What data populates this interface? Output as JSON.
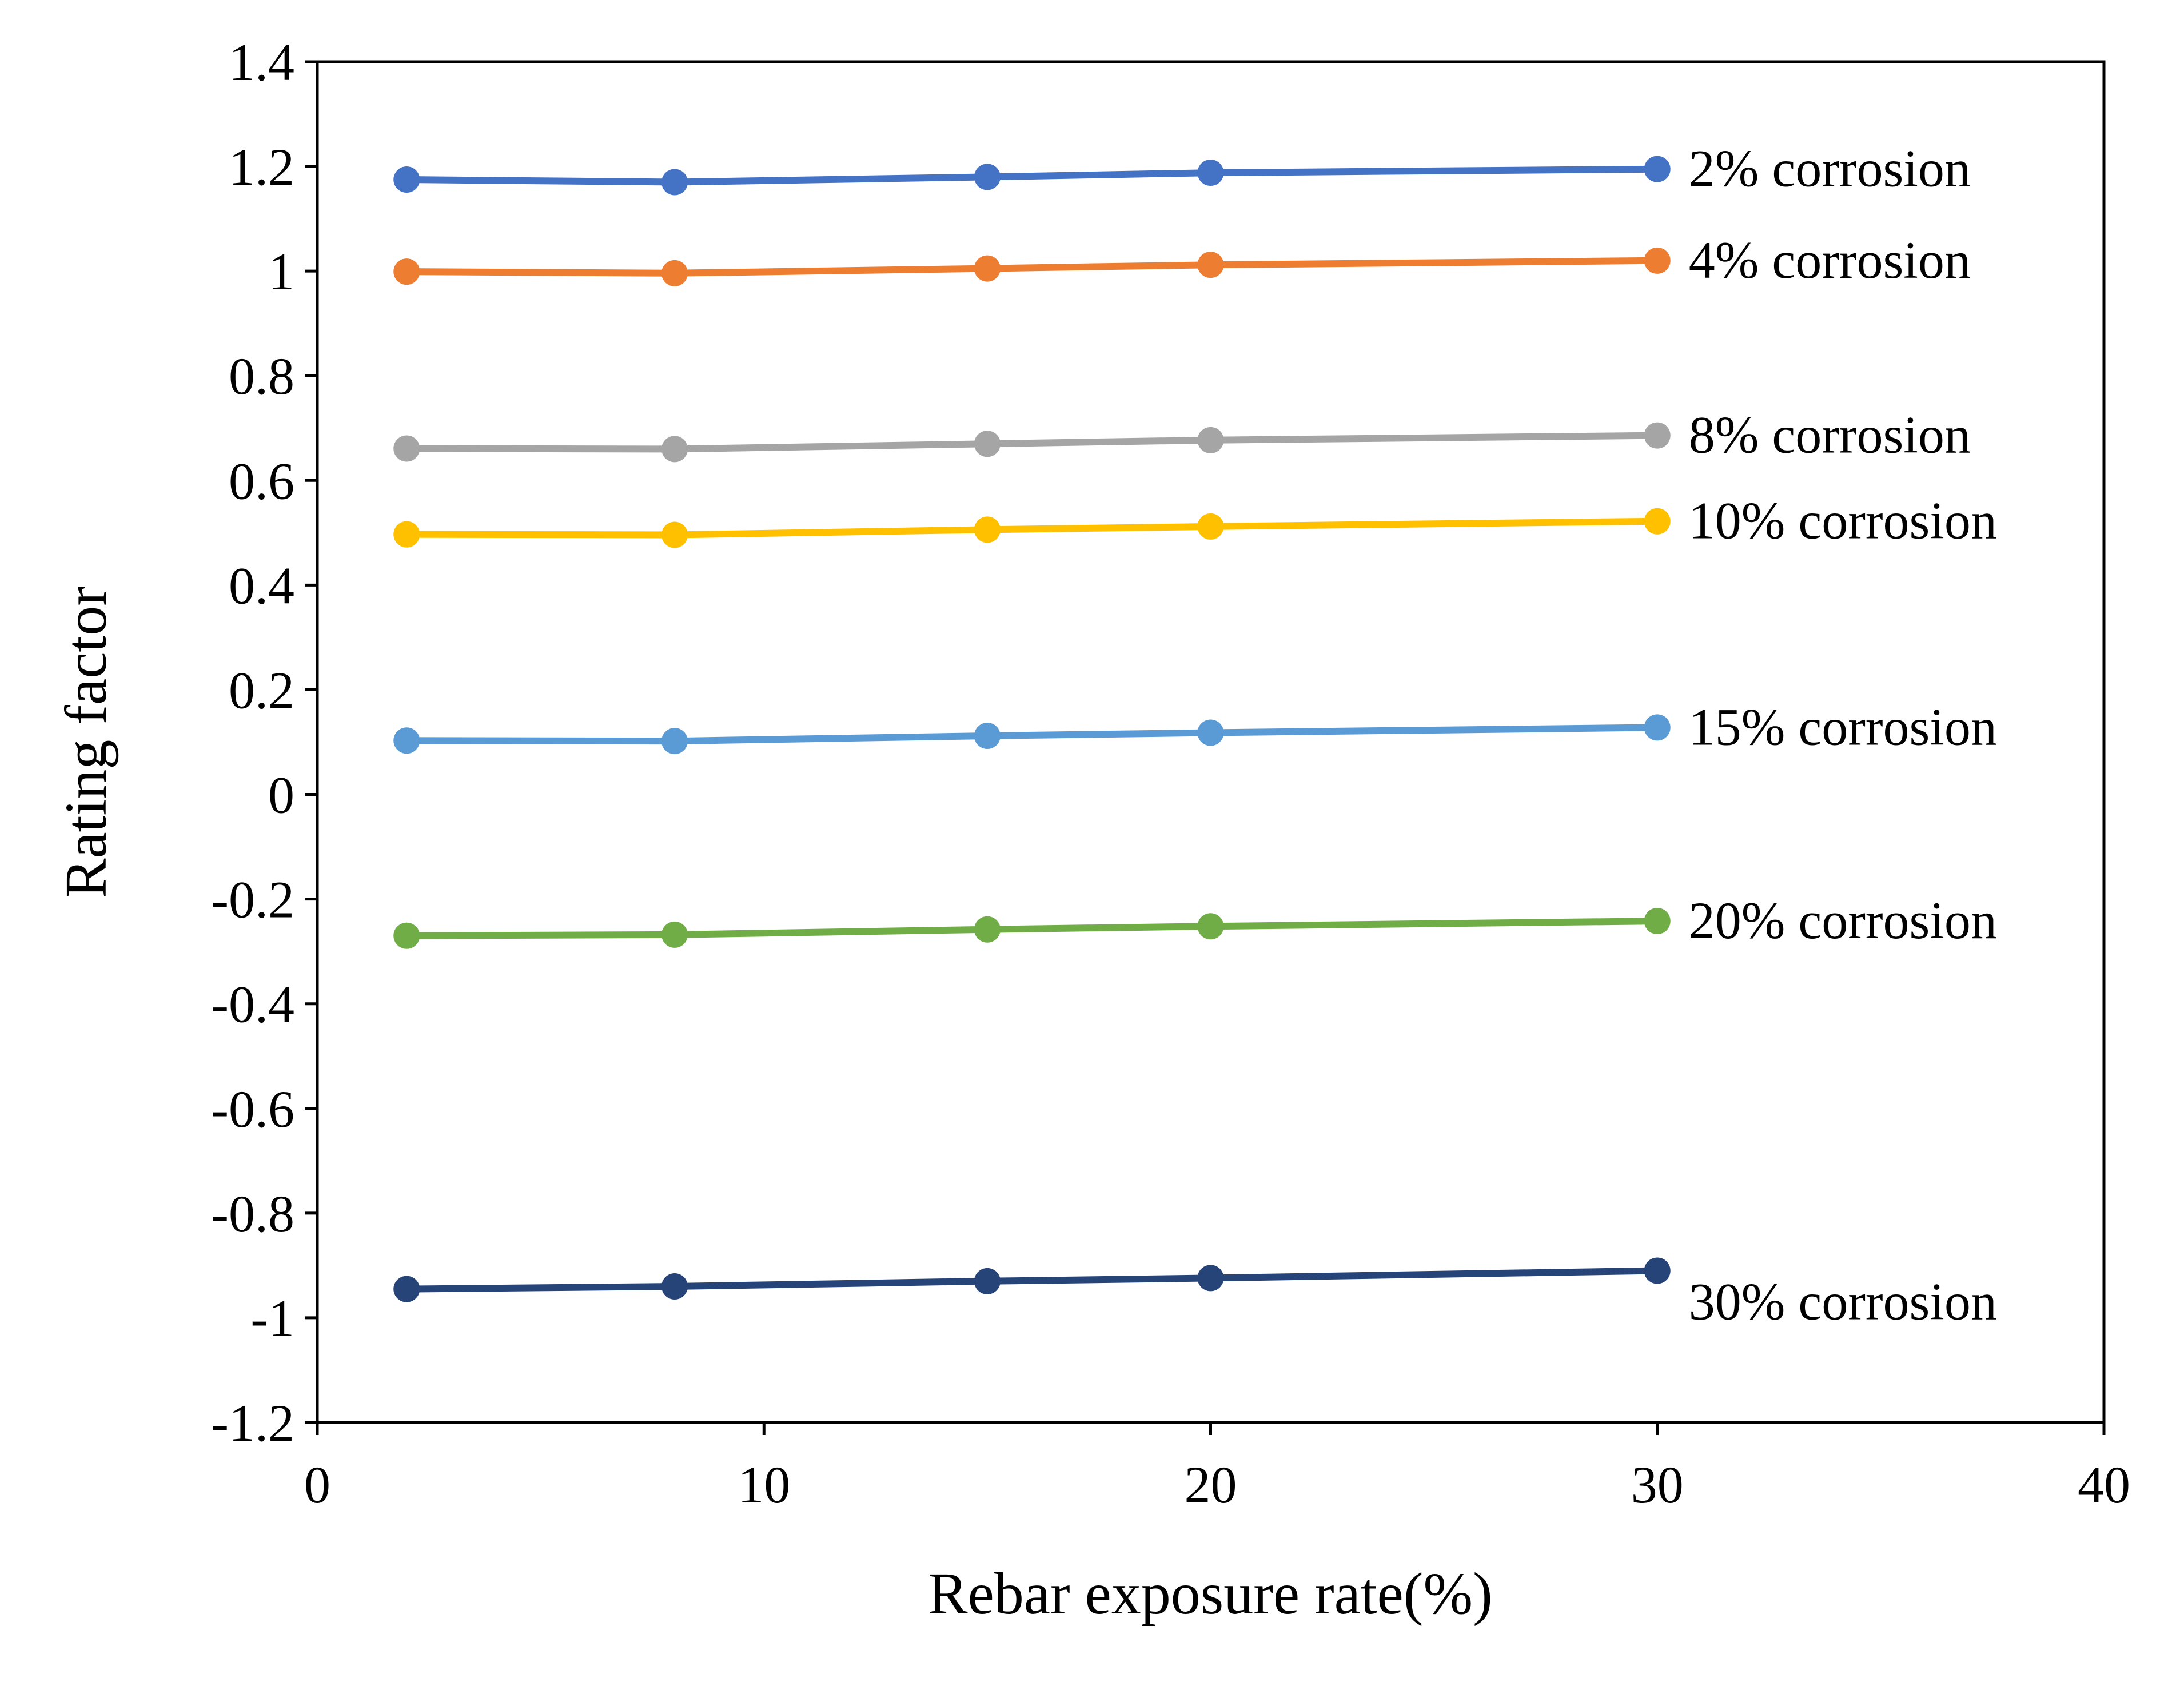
{
  "chart_data": {
    "type": "line",
    "title": "",
    "xlabel": "Rebar exposure rate(%)",
    "ylabel": "Rating factor",
    "xlim": [
      0,
      40
    ],
    "ylim": [
      -1.2,
      1.4
    ],
    "x_ticks": [
      0,
      10,
      20,
      30,
      40
    ],
    "x_tick_labels": [
      "0",
      "10",
      "20",
      "30",
      "40"
    ],
    "y_ticks": [
      1.4,
      1.2,
      1,
      0.8,
      0.6,
      0.4,
      0.2,
      0,
      -0.2,
      -0.4,
      -0.6,
      -0.8,
      -1,
      -1.2
    ],
    "y_tick_labels": [
      "1.4",
      "1.2",
      "1",
      "0.8",
      "0.6",
      "0.4",
      "0.2",
      "0",
      "-0.2",
      "-0.4",
      "-0.6",
      "-0.8",
      "-1",
      "-1.2"
    ],
    "grid": false,
    "legend": "none",
    "x": [
      2,
      8,
      15,
      20,
      30
    ],
    "series": [
      {
        "name": "2% corrosion",
        "color": "#4472C4",
        "values": [
          1.175,
          1.17,
          1.18,
          1.188,
          1.195
        ]
      },
      {
        "name": "4% corrosion",
        "color": "#ED7D31",
        "values": [
          0.999,
          0.996,
          1.005,
          1.012,
          1.02
        ]
      },
      {
        "name": "8% corrosion",
        "color": "#A5A5A5",
        "values": [
          0.661,
          0.66,
          0.67,
          0.677,
          0.686
        ]
      },
      {
        "name": "10% corrosion",
        "color": "#FFC000",
        "values": [
          0.497,
          0.496,
          0.506,
          0.512,
          0.522
        ]
      },
      {
        "name": "15% corrosion",
        "color": "#5B9BD5",
        "values": [
          0.103,
          0.102,
          0.112,
          0.118,
          0.128
        ]
      },
      {
        "name": "20% corrosion",
        "color": "#70AD47",
        "values": [
          -0.27,
          -0.268,
          -0.258,
          -0.252,
          -0.242
        ]
      },
      {
        "name": "30% corrosion",
        "color": "#264478",
        "values": [
          -0.945,
          -0.94,
          -0.93,
          -0.924,
          -0.91
        ]
      }
    ]
  }
}
